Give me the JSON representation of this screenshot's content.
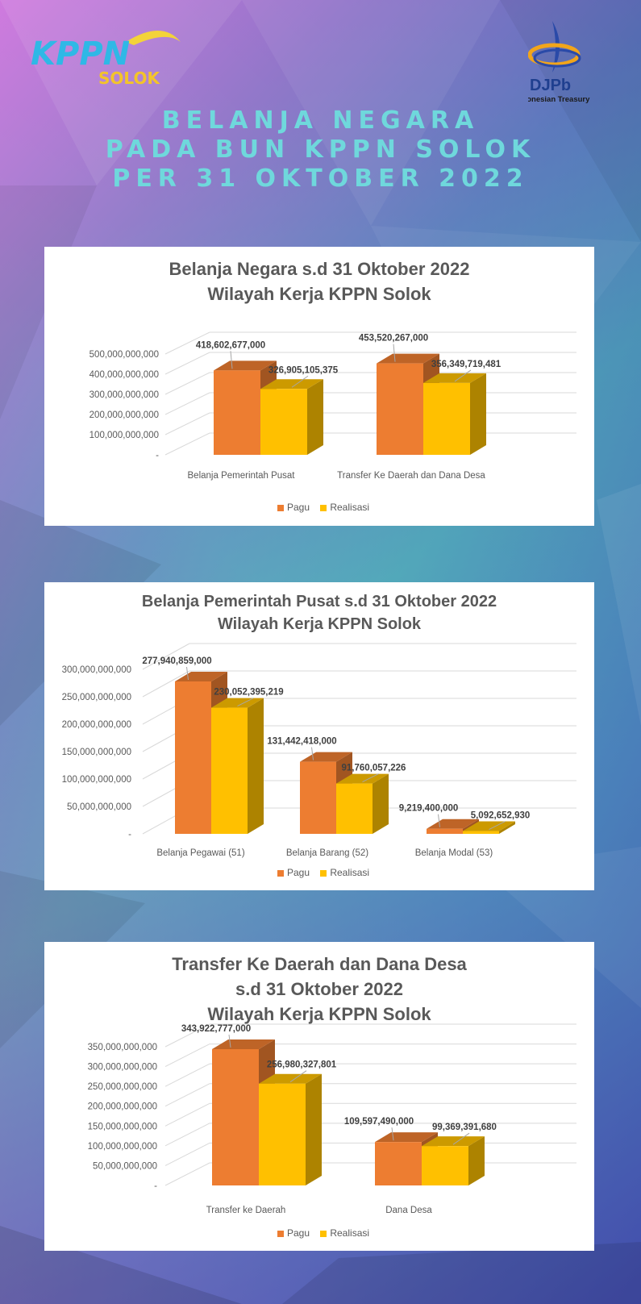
{
  "header": {
    "kppn_logo_text": "KPPN",
    "kppn_logo_sub": "SOLOK",
    "djpb_logo_text": "DJPb",
    "djpb_logo_sub": "Indonesian Treasury",
    "title_lines": [
      "BELANJA NEGARA",
      "PADA BUN KPPN SOLOK",
      "PER 31 OKTOBER 2022"
    ]
  },
  "colors": {
    "pagu": "#ED7D31",
    "realisasi": "#FFC000",
    "title_accent": "#6fd8dc"
  },
  "chart_data": [
    {
      "type": "bar",
      "title_lines": [
        "Belanja Negara s.d 31 Oktober 2022",
        "Wilayah Kerja KPPN Solok"
      ],
      "categories": [
        "Belanja Pemerintah Pusat",
        "Transfer Ke Daerah dan Dana Desa"
      ],
      "series": [
        {
          "name": "Pagu",
          "values": [
            418602677000,
            453520267000
          ],
          "labels": [
            "418,602,677,000",
            "453,520,267,000"
          ]
        },
        {
          "name": "Realisasi",
          "values": [
            326905105375,
            356349719481
          ],
          "labels": [
            "326,905,105,375",
            "356,349,719,481"
          ]
        }
      ],
      "ylim": [
        0,
        500000000000
      ],
      "yticks": [
        "-",
        "100,000,000,000",
        "200,000,000,000",
        "300,000,000,000",
        "400,000,000,000",
        "500,000,000,000"
      ],
      "legend": "bottom",
      "grid": true
    },
    {
      "type": "bar",
      "title_lines": [
        "Belanja Pemerintah Pusat s.d 31 Oktober 2022",
        "Wilayah Kerja KPPN Solok"
      ],
      "categories": [
        "Belanja Pegawai (51)",
        "Belanja Barang (52)",
        "Belanja Modal (53)"
      ],
      "series": [
        {
          "name": "Pagu",
          "values": [
            277940859000,
            131442418000,
            9219400000
          ],
          "labels": [
            "277,940,859,000",
            "131,442,418,000",
            "9,219,400,000"
          ]
        },
        {
          "name": "Realisasi",
          "values": [
            230052395219,
            91760057226,
            5092652930
          ],
          "labels": [
            "230,052,395,219",
            "91,760,057,226",
            "5,092,652,930"
          ]
        }
      ],
      "ylim": [
        0,
        300000000000
      ],
      "yticks": [
        "-",
        "50,000,000,000",
        "100,000,000,000",
        "150,000,000,000",
        "200,000,000,000",
        "250,000,000,000",
        "300,000,000,000"
      ],
      "legend": "bottom",
      "grid": true
    },
    {
      "type": "bar",
      "title_lines": [
        "Transfer Ke Daerah dan Dana Desa",
        "s.d 31 Oktober 2022",
        "Wilayah Kerja KPPN Solok"
      ],
      "categories": [
        "Transfer ke Daerah",
        "Dana Desa"
      ],
      "series": [
        {
          "name": "Pagu",
          "values": [
            343922777000,
            109597490000
          ],
          "labels": [
            "343,922,777,000",
            "109,597,490,000"
          ]
        },
        {
          "name": "Realisasi",
          "values": [
            256980327801,
            99369391680
          ],
          "labels": [
            "256,980,327,801",
            "99,369,391,680"
          ]
        }
      ],
      "ylim": [
        0,
        350000000000
      ],
      "yticks": [
        "-",
        "50,000,000,000",
        "100,000,000,000",
        "150,000,000,000",
        "200,000,000,000",
        "250,000,000,000",
        "300,000,000,000",
        "350,000,000,000"
      ],
      "legend": "bottom",
      "grid": true
    }
  ]
}
